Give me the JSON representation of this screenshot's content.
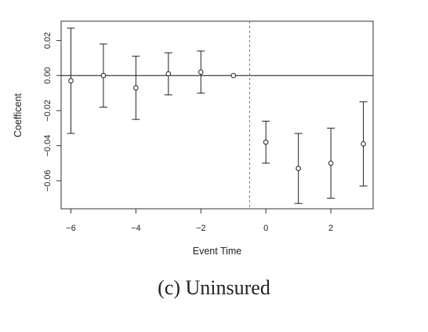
{
  "caption": "(c) Uninsured",
  "chart_data": {
    "type": "scatter",
    "title": "",
    "xlabel": "Event Time",
    "ylabel": "Coefficent",
    "xlim": [
      -6.3,
      3.3
    ],
    "ylim": [
      -0.076,
      0.031
    ],
    "xticks": [
      -6,
      -4,
      -2,
      0,
      2
    ],
    "xtick_labels": [
      "−6",
      "−4",
      "−2",
      "0",
      "2"
    ],
    "yticks": [
      -0.06,
      -0.04,
      -0.02,
      0.0,
      0.02
    ],
    "ytick_labels": [
      "−0.06",
      "−0.04",
      "−0.02",
      "0.00",
      "0.02"
    ],
    "reference_lines": {
      "horizontal_y": 0,
      "vertical_dashed_x": -0.5
    },
    "grid": false,
    "series": [
      {
        "points": [
          {
            "x": -6,
            "y": -0.003,
            "lower": -0.033,
            "upper": 0.027
          },
          {
            "x": -5,
            "y": 0.0,
            "lower": -0.018,
            "upper": 0.018
          },
          {
            "x": -4,
            "y": -0.007,
            "lower": -0.025,
            "upper": 0.011
          },
          {
            "x": -3,
            "y": 0.001,
            "lower": -0.011,
            "upper": 0.013
          },
          {
            "x": -2,
            "y": 0.002,
            "lower": -0.01,
            "upper": 0.014
          },
          {
            "x": -1,
            "y": 0.0
          },
          {
            "x": 0,
            "y": -0.038,
            "lower": -0.05,
            "upper": -0.026
          },
          {
            "x": 1,
            "y": -0.053,
            "lower": -0.073,
            "upper": -0.033
          },
          {
            "x": 2,
            "y": -0.05,
            "lower": -0.07,
            "upper": -0.03
          },
          {
            "x": 3,
            "y": -0.039,
            "lower": -0.063,
            "upper": -0.015
          }
        ]
      }
    ]
  }
}
